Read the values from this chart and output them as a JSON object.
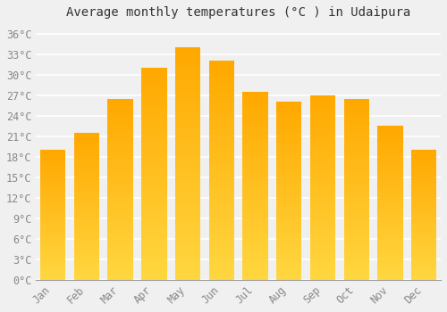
{
  "title": "Average monthly temperatures (°C ) in Udaipura",
  "months": [
    "Jan",
    "Feb",
    "Mar",
    "Apr",
    "May",
    "Jun",
    "Jul",
    "Aug",
    "Sep",
    "Oct",
    "Nov",
    "Dec"
  ],
  "values": [
    19.0,
    21.5,
    26.5,
    31.0,
    34.0,
    32.0,
    27.5,
    26.0,
    27.0,
    26.5,
    22.5,
    19.0
  ],
  "bar_color_main": "#FFAA00",
  "bar_color_light": "#FFD740",
  "bar_color_dark": "#FFA000",
  "background_color": "#F0F0F0",
  "grid_color": "#FFFFFF",
  "yticks": [
    0,
    3,
    6,
    9,
    12,
    15,
    18,
    21,
    24,
    27,
    30,
    33,
    36
  ],
  "ylim": [
    0,
    37.5
  ],
  "title_fontsize": 10,
  "tick_fontsize": 8.5,
  "font_family": "monospace"
}
